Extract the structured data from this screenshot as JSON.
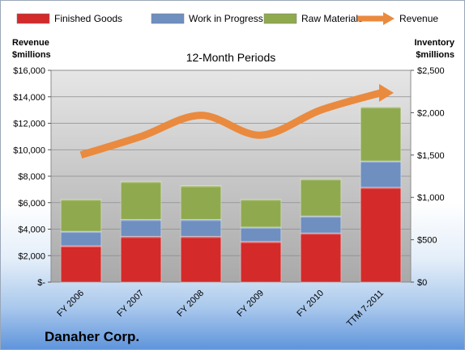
{
  "chart_data": {
    "type": "bar",
    "stacked": true,
    "subtitle": "12-Month Periods",
    "company": "Danaher Corp.",
    "categories": [
      "FY 2006",
      "FY 2007",
      "FY 2008",
      "FY 2009",
      "FY 2010",
      "TTM 7-2011"
    ],
    "series": [
      {
        "name": "Finished Goods",
        "axis": "right",
        "color": "#d42a2a",
        "values": [
          430,
          540,
          540,
          480,
          580,
          1120
        ]
      },
      {
        "name": "Work in Progress",
        "axis": "right",
        "color": "#6e8fc0",
        "values": [
          170,
          200,
          200,
          170,
          200,
          310
        ]
      },
      {
        "name": "Raw Materials",
        "axis": "right",
        "color": "#8faa4e",
        "values": [
          380,
          450,
          400,
          330,
          440,
          640
        ]
      },
      {
        "name": "Revenue",
        "axis": "left",
        "type": "line",
        "color": "#ea8a3e",
        "values": [
          9600,
          11000,
          12600,
          11100,
          13000,
          14300
        ]
      }
    ],
    "left_axis": {
      "label_line1": "Revenue",
      "label_line2": "$millions",
      "ylim": [
        0,
        16000
      ],
      "ticks": [
        0,
        2000,
        4000,
        6000,
        8000,
        10000,
        12000,
        14000,
        16000
      ],
      "tick_labels": [
        "$-",
        "$2,000",
        "$4,000",
        "$6,000",
        "$8,000",
        "$10,000",
        "$12,000",
        "$14,000",
        "$16,000"
      ]
    },
    "right_axis": {
      "label_line1": "Inventory",
      "label_line2": "$millions",
      "ylim": [
        0,
        2500
      ],
      "ticks": [
        0,
        500,
        1000,
        1500,
        2000,
        2500
      ],
      "tick_labels": [
        "$0",
        "$500",
        "$1,000",
        "$1,500",
        "$2,000",
        "$2,500"
      ]
    },
    "grid": true,
    "legend_position": "top"
  }
}
